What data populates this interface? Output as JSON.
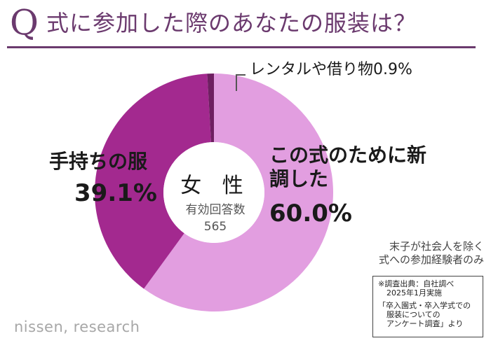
{
  "header": {
    "q_mark": "Q",
    "question": "式に参加した際のあなたの服装は？"
  },
  "chart_data": {
    "type": "pie",
    "donut": true,
    "title": "Q 式に参加した際のあなたの服装は？",
    "center": {
      "label": "女 性",
      "sub_label": "有効回答数",
      "n": "565"
    },
    "slices": [
      {
        "name": "この式のために新調した",
        "value": 60.0,
        "display": "60.0%",
        "color": "#e29ee0"
      },
      {
        "name": "手持ちの服",
        "value": 39.1,
        "display": "39.1%",
        "color": "#a3298f"
      },
      {
        "name": "レンタルや借り物",
        "value": 0.9,
        "display": "0.9%",
        "color": "#6e1f61"
      }
    ],
    "start": "12 o'clock",
    "direction": "clockwise"
  },
  "labels": {
    "other_full": "レンタルや借り物0.9%"
  },
  "note": {
    "line1": "末子が社会人を除く",
    "line2": "式への参加経験者のみ"
  },
  "source": {
    "line1": "※調査出典：自社調べ",
    "line2": "2025年1月実施",
    "line3": "「卒入園式・卒入学式での",
    "line4": "服装についての",
    "line5": "アンケート調査」より"
  },
  "logo": "nissen, research"
}
